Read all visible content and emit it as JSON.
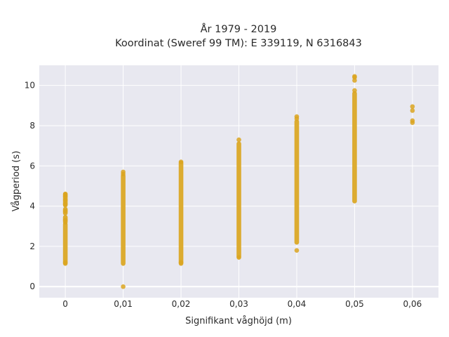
{
  "chart_data": {
    "type": "scatter",
    "title_line1": "År 1979 - 2019",
    "title_line2": "Koordinat (Sweref 99 TM): E 339119, N 6316843",
    "xlabel": "Signifikant våghöjd (m)",
    "ylabel": "Vågperiod (s)",
    "xlim": [
      -0.0045,
      0.0645
    ],
    "ylim": [
      -0.55,
      11.0
    ],
    "x_ticks": [
      0,
      0.01,
      0.02,
      0.03,
      0.04,
      0.05,
      0.06
    ],
    "x_tick_labels": [
      "0",
      "0,01",
      "0,02",
      "0,03",
      "0,04",
      "0,05",
      "0,06"
    ],
    "y_ticks": [
      0,
      2,
      4,
      6,
      8,
      10
    ],
    "y_tick_labels": [
      "0",
      "2",
      "4",
      "6",
      "8",
      "10"
    ],
    "grid": true,
    "marker_color": "#DAA520",
    "background_color": "#E8E8F0",
    "series": [
      {
        "x": 0,
        "ranges": [
          [
            1.15,
            3.1
          ],
          [
            3.2,
            3.45
          ],
          [
            3.65,
            3.85
          ],
          [
            4.05,
            4.6
          ]
        ],
        "points": [
          1.2,
          3.3,
          3.75,
          4.1,
          4.3,
          4.5,
          4.6
        ]
      },
      {
        "x": 0.01,
        "ranges": [
          [
            1.15,
            5.5
          ]
        ],
        "points": [
          0.0,
          5.6,
          5.7
        ]
      },
      {
        "x": 0.02,
        "ranges": [
          [
            1.15,
            6.15
          ]
        ],
        "points": [
          1.2,
          6.2
        ]
      },
      {
        "x": 0.03,
        "ranges": [
          [
            1.5,
            7.1
          ]
        ],
        "points": [
          1.45,
          7.3
        ]
      },
      {
        "x": 0.04,
        "ranges": [
          [
            2.2,
            8.2
          ]
        ],
        "points": [
          1.8,
          8.35,
          8.45
        ]
      },
      {
        "x": 0.05,
        "ranges": [
          [
            4.25,
            9.6
          ]
        ],
        "points": [
          9.75,
          10.25,
          10.4,
          10.45
        ]
      },
      {
        "x": 0.06,
        "ranges": [],
        "points": [
          8.15,
          8.25,
          8.75,
          8.95
        ]
      }
    ]
  }
}
